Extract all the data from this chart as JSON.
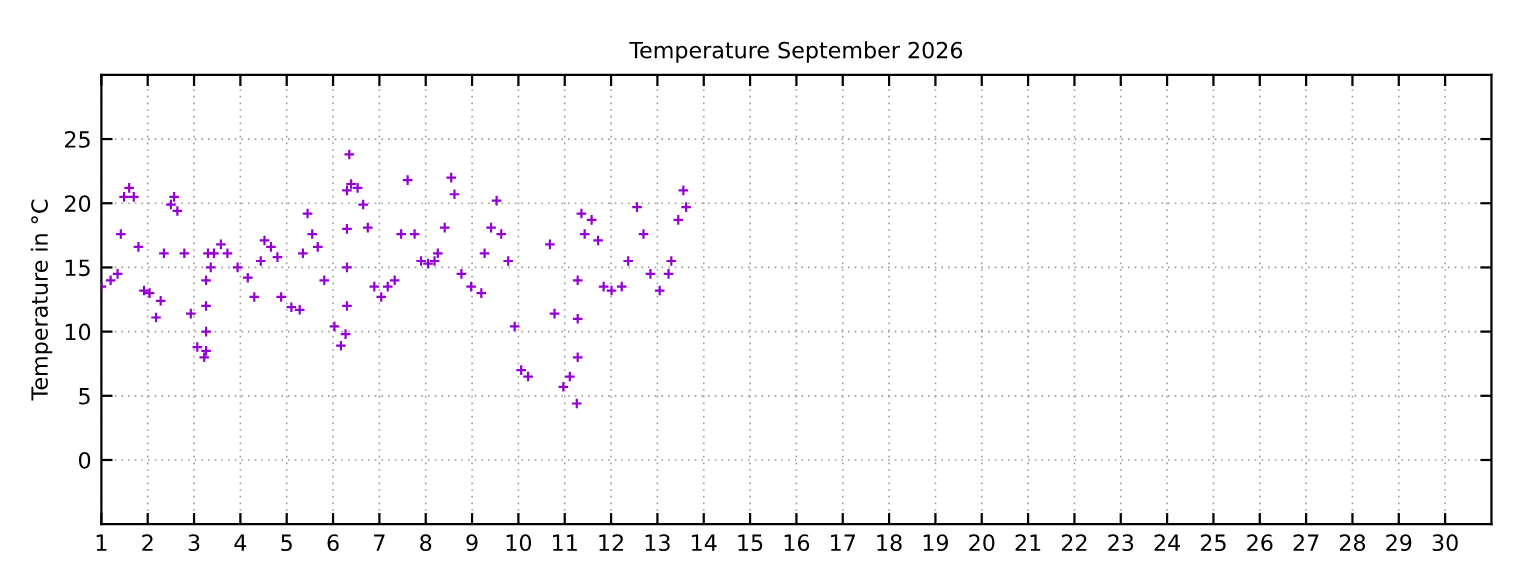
{
  "chart_data": {
    "type": "scatter",
    "title": "Temperature September 2026",
    "ylabel": "Temperature in °C",
    "xlim": [
      1,
      31
    ],
    "xticks": [
      1,
      2,
      3,
      4,
      5,
      6,
      7,
      8,
      9,
      10,
      11,
      12,
      13,
      14,
      15,
      16,
      17,
      18,
      19,
      20,
      21,
      22,
      23,
      24,
      25,
      26,
      27,
      28,
      29,
      30
    ],
    "ylim": [
      -5,
      30
    ],
    "yticks": [
      0,
      5,
      10,
      15,
      20,
      25
    ],
    "grid": true,
    "marker": "cross",
    "series": [
      {
        "color": "#9400d3",
        "x": [
          1.0,
          1.2,
          1.35,
          1.42,
          1.49,
          1.6,
          1.7,
          1.8,
          1.92,
          2.04,
          2.18,
          2.28,
          2.35,
          2.5,
          2.57,
          2.64,
          2.79,
          2.93,
          3.07,
          3.22,
          3.26,
          3.26,
          3.26,
          3.26,
          3.3,
          3.36,
          3.43,
          3.58,
          3.72,
          3.94,
          4.16,
          4.3,
          4.44,
          4.52,
          4.66,
          4.8,
          4.88,
          5.1,
          5.28,
          5.35,
          5.45,
          5.55,
          5.67,
          5.81,
          6.03,
          6.17,
          6.27,
          6.3,
          6.3,
          6.3,
          6.3,
          6.35,
          6.39,
          6.53,
          6.65,
          6.75,
          6.89,
          7.04,
          7.18,
          7.33,
          7.47,
          7.61,
          7.76,
          7.9,
          8.05,
          8.19,
          8.26,
          8.41,
          8.55,
          8.62,
          8.77,
          8.98,
          9.2,
          9.27,
          9.41,
          9.53,
          9.63,
          9.78,
          9.92,
          10.06,
          10.21,
          10.68,
          10.78,
          10.97,
          11.11,
          11.26,
          11.28,
          11.28,
          11.28,
          11.36,
          11.43,
          11.58,
          11.72,
          11.84,
          12.01,
          12.23,
          12.37,
          12.56,
          12.7,
          12.85,
          13.05,
          13.24,
          13.3,
          13.45,
          13.56,
          13.62
        ],
        "values": [
          13.5,
          14,
          14.5,
          17.6,
          20.5,
          21.2,
          20.5,
          16.6,
          13.2,
          13.0,
          11.1,
          12.4,
          16.1,
          19.9,
          20.5,
          19.4,
          16.1,
          11.4,
          8.8,
          8.0,
          8.5,
          10,
          12,
          14,
          16.1,
          15.0,
          16.1,
          16.8,
          16.1,
          15.0,
          14.2,
          12.7,
          15.5,
          17.1,
          16.6,
          15.8,
          12.7,
          11.9,
          11.7,
          16.1,
          19.2,
          17.6,
          16.6,
          14.0,
          10.4,
          8.9,
          9.8,
          12,
          15,
          18,
          21,
          23.8,
          21.5,
          21.2,
          19.9,
          18.1,
          13.5,
          12.7,
          13.5,
          14.0,
          17.6,
          21.8,
          17.6,
          15.5,
          15.3,
          15.5,
          16.1,
          18.1,
          22.0,
          20.7,
          14.5,
          13.5,
          13.0,
          16.1,
          18.1,
          20.2,
          17.6,
          15.5,
          10.4,
          7.0,
          6.5,
          16.8,
          11.4,
          5.7,
          6.5,
          4.4,
          8,
          11,
          14,
          19.2,
          17.6,
          18.7,
          17.1,
          13.5,
          13.2,
          13.5,
          15.5,
          19.7,
          17.6,
          14.5,
          13.2,
          14.5,
          15.5,
          18.7,
          21.0,
          19.7
        ]
      }
    ]
  }
}
